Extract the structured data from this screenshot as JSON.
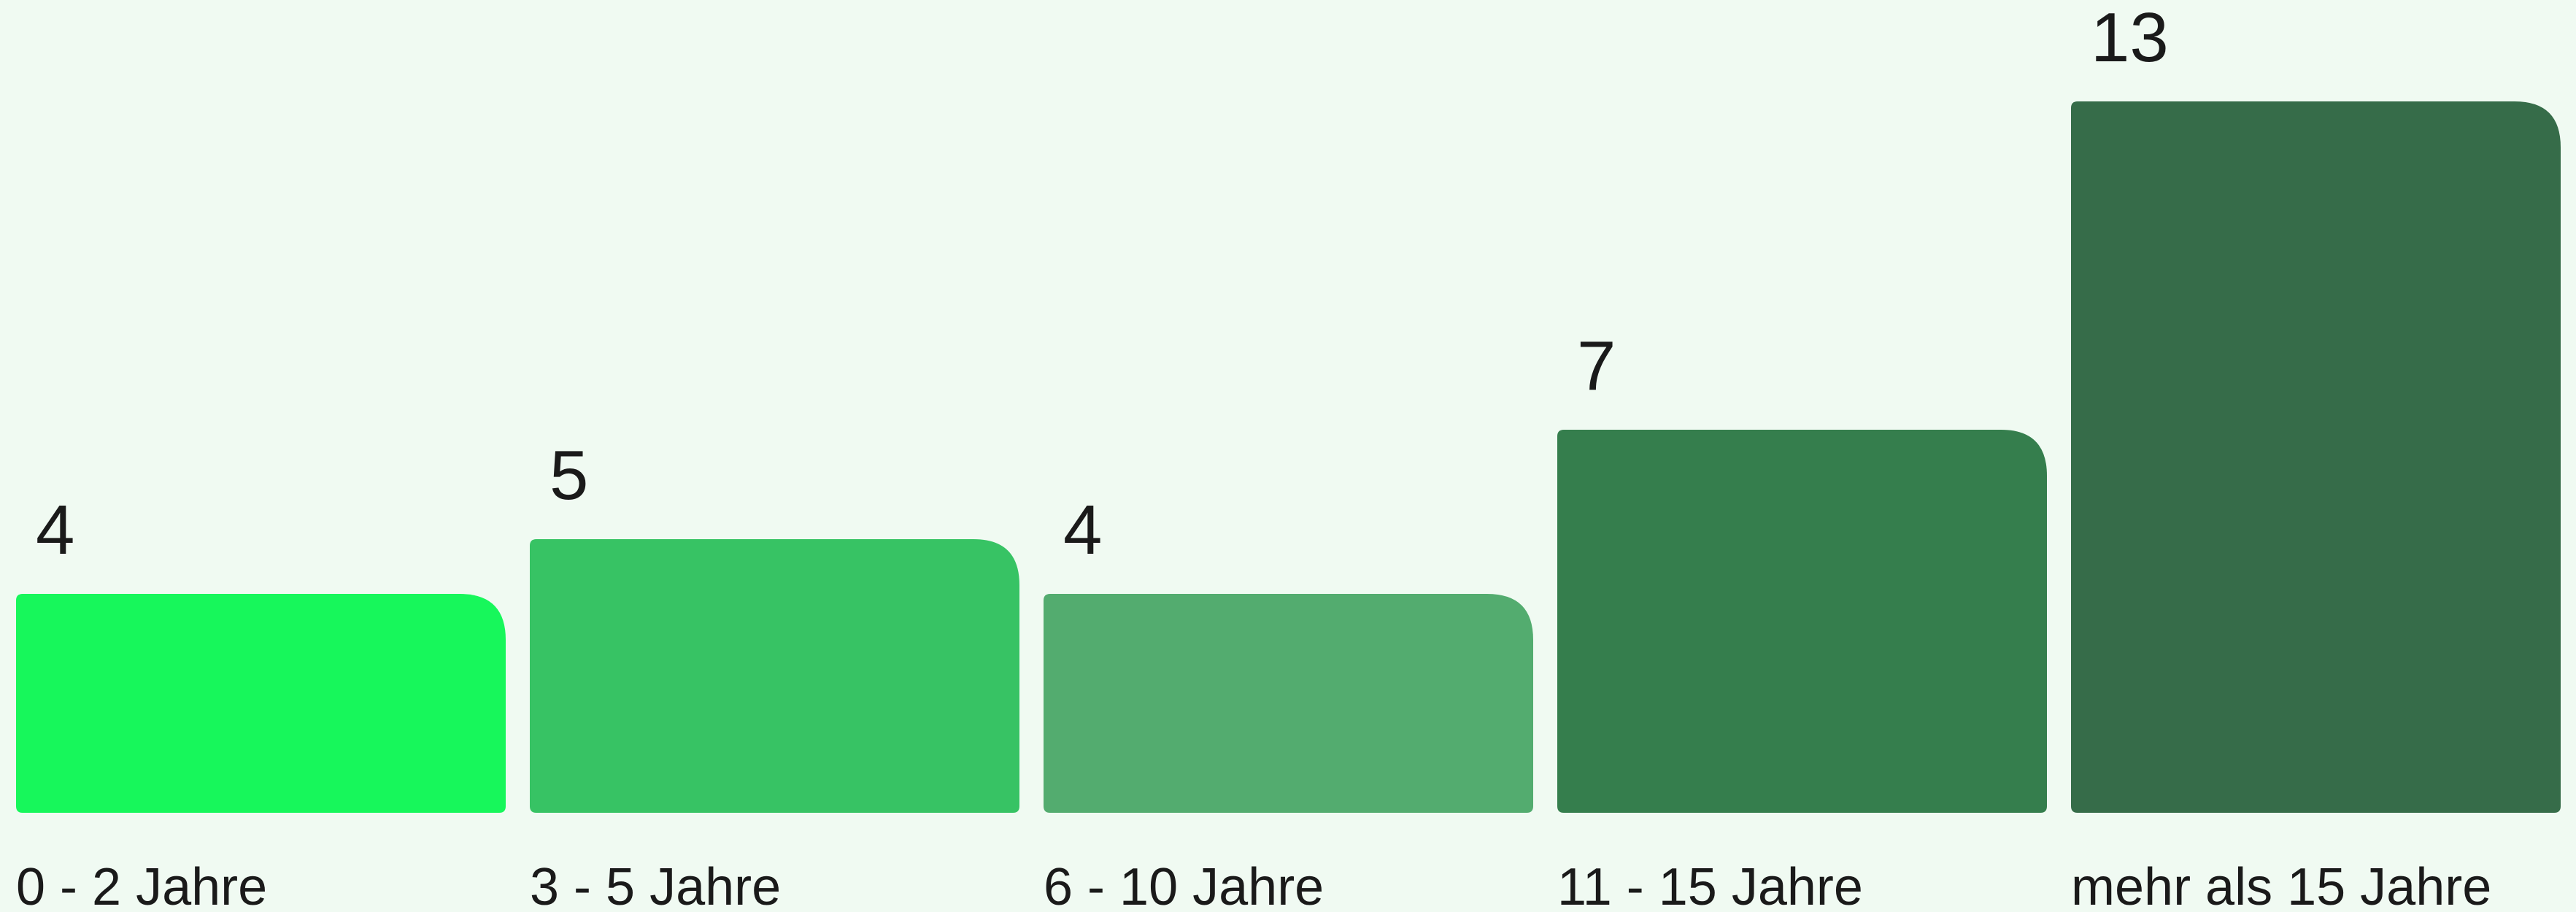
{
  "chart_data": {
    "type": "bar",
    "categories": [
      "0 - 2 Jahre",
      "3 - 5 Jahre",
      "6 - 10 Jahre",
      "11 - 15 Jahre",
      "mehr als 15 Jahre"
    ],
    "values": [
      4,
      5,
      4,
      7,
      13
    ],
    "colors": [
      "#17f75b",
      "#37c364",
      "#53ac6f",
      "#357e4d",
      "#366c49"
    ]
  }
}
